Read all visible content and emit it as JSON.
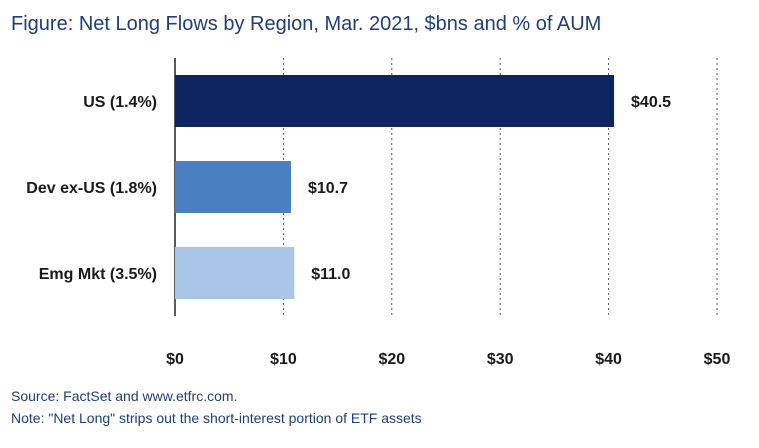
{
  "title": {
    "prefix": "Figure:",
    "text": "Net Long Flows by Region, Mar. 2021, $bns and % of AUM"
  },
  "footer": {
    "source": "Source: FactSet and www.etfrc.com.",
    "note": "Note: \"Net Long\" strips out the short-interest portion of ETF assets"
  },
  "chart_data": {
    "type": "bar",
    "orientation": "horizontal",
    "categories": [
      "US (1.4%)",
      "Dev ex-US (1.8%)",
      "Emg Mkt (3.5%)"
    ],
    "values": [
      40.5,
      10.7,
      11.0
    ],
    "value_labels": [
      "$40.5",
      "$10.7",
      "$11.0"
    ],
    "bar_colors": [
      "#0d2460",
      "#4a7fc1",
      "#a9c6e8"
    ],
    "xlim": [
      0,
      50
    ],
    "xticks": [
      0,
      10,
      20,
      30,
      40,
      50
    ],
    "xtick_labels": [
      "$0",
      "$10",
      "$20",
      "$30",
      "$40",
      "$50"
    ],
    "grid": "vertical dotted",
    "xlabel": "",
    "ylabel": ""
  }
}
